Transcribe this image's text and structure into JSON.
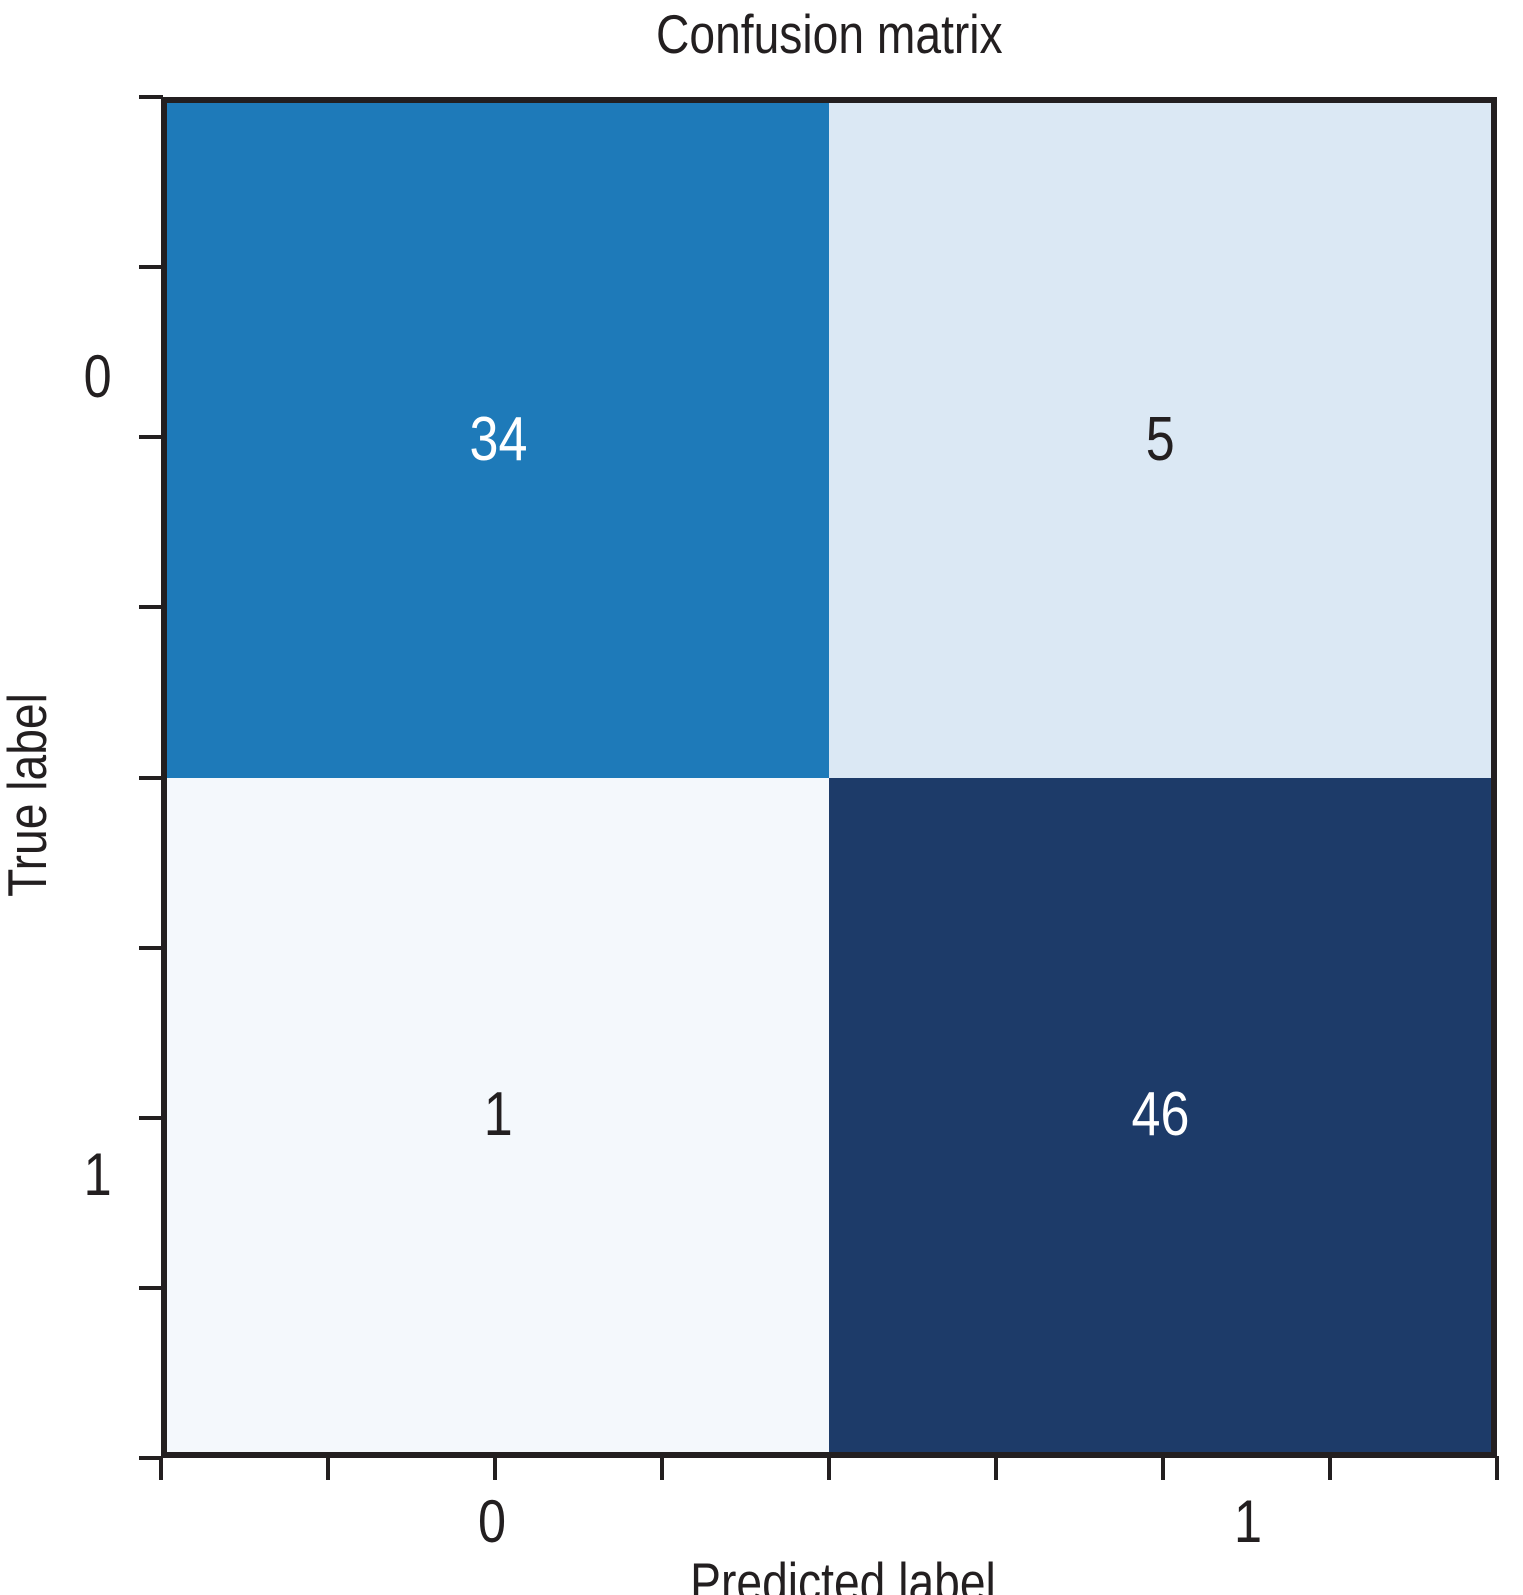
{
  "title": "Confusion matrix",
  "axes": {
    "x_label": "Predicted label",
    "y_label": "True label",
    "x_tick_labels": [
      "0",
      "1"
    ],
    "y_tick_labels": [
      "0",
      "1"
    ]
  },
  "chart_data": {
    "type": "heatmap",
    "title": "Confusion matrix",
    "xlabel": "Predicted label",
    "ylabel": "True label",
    "x_categories": [
      "0",
      "1"
    ],
    "y_categories": [
      "0",
      "1"
    ],
    "matrix": [
      [
        34,
        5
      ],
      [
        1,
        46
      ]
    ],
    "colormap": "Blues",
    "cell_colors": [
      [
        "#1e7ab9",
        "#dbe8f4"
      ],
      [
        "#f4f8fc",
        "#1d3b69"
      ]
    ],
    "cell_text_colors": [
      [
        "#ffffff",
        "#231f20"
      ],
      [
        "#231f20",
        "#ffffff"
      ]
    ],
    "axis_range": [
      -0.5,
      1.5
    ],
    "tick_step": 0.25,
    "grid": false,
    "legend": "none"
  },
  "colors": {
    "spine": "#231f20",
    "text": "#231f20",
    "background": "#ffffff"
  }
}
